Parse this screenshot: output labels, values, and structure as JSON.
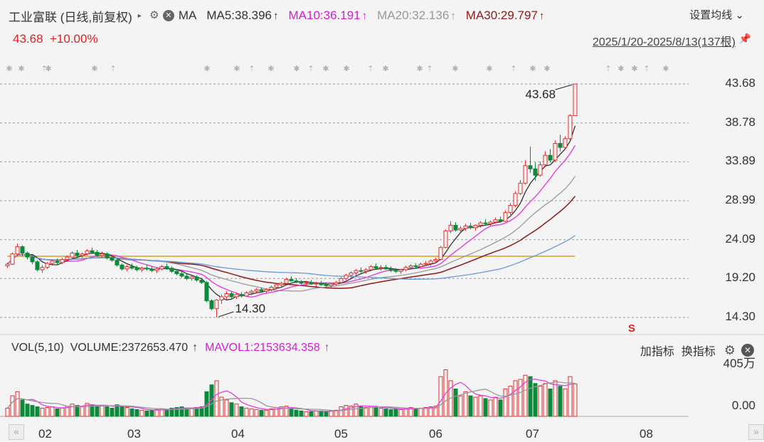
{
  "header": {
    "title": "工业富联 (日线,前复权)",
    "ma_label": "MA",
    "ma5": "MA5:38.396",
    "ma10": "MA10:36.191",
    "ma20": "MA20:32.136",
    "ma30": "MA30:29.797",
    "settings": "设置均线",
    "last_price": "43.68",
    "change_pct": "+10.00%",
    "range": "2025/1/20-2025/8/13(137根)"
  },
  "volume_panel": {
    "label": "VOL(5,10)",
    "volume": "VOLUME:2372653.470",
    "mavol": "MAVOL1:2153634.358",
    "add_indicator": "加指标",
    "switch_indicator": "换指标",
    "yticks": [
      "405万",
      "0.00"
    ]
  },
  "x_axis": {
    "months": [
      "02",
      "03",
      "04",
      "05",
      "06",
      "07",
      "08"
    ]
  },
  "price_axis": {
    "ticks": [
      "43.68",
      "38.78",
      "33.89",
      "28.99",
      "24.09",
      "19.20",
      "14.30"
    ]
  },
  "annotations": {
    "high": "43.68",
    "low": "14.30"
  },
  "colors": {
    "up": "#e03030",
    "down": "#0a8a3a",
    "ma5": "#333333",
    "ma10": "#e040e0",
    "ma20": "#999999",
    "ma30": "#8b1a1a",
    "ma60": "#6a9ad8",
    "ma120": "#d4a020",
    "yellow": "#e8c020",
    "bg": "#f4f4f4"
  },
  "chart_data": {
    "type": "candlestick",
    "ylim": [
      14.3,
      43.68
    ],
    "vol_ylim": [
      0,
      405
    ],
    "ma_current": {
      "MA5": 38.396,
      "MA10": 36.191,
      "MA20": 32.136,
      "MA30": 29.797
    },
    "candles": [
      [
        20.8,
        21.2,
        20.5,
        21.0,
        60
      ],
      [
        21.0,
        22.5,
        20.9,
        22.3,
        150
      ],
      [
        22.3,
        23.6,
        22.0,
        23.2,
        180
      ],
      [
        23.2,
        23.4,
        22.0,
        22.4,
        120
      ],
      [
        22.4,
        22.6,
        21.6,
        21.9,
        90
      ],
      [
        21.9,
        22.2,
        21.0,
        21.3,
        80
      ],
      [
        21.3,
        21.5,
        20.1,
        20.3,
        70
      ],
      [
        20.3,
        20.9,
        19.9,
        20.6,
        60
      ],
      [
        20.6,
        21.3,
        20.4,
        21.1,
        65
      ],
      [
        21.1,
        21.6,
        20.8,
        21.4,
        70
      ],
      [
        21.4,
        21.7,
        21.0,
        21.2,
        55
      ],
      [
        21.2,
        21.8,
        21.0,
        21.6,
        60
      ],
      [
        21.6,
        22.1,
        21.3,
        21.9,
        75
      ],
      [
        21.9,
        22.6,
        21.7,
        22.4,
        90
      ],
      [
        22.4,
        22.8,
        21.9,
        22.1,
        80
      ],
      [
        22.1,
        22.5,
        21.8,
        22.3,
        70
      ],
      [
        22.3,
        22.9,
        22.1,
        22.7,
        95
      ],
      [
        22.7,
        23.1,
        22.3,
        22.5,
        85
      ],
      [
        22.5,
        22.8,
        21.9,
        22.1,
        75
      ],
      [
        22.1,
        22.6,
        21.8,
        22.3,
        80
      ],
      [
        22.3,
        22.5,
        21.6,
        21.8,
        70
      ],
      [
        21.8,
        22.0,
        21.3,
        21.5,
        60
      ],
      [
        21.5,
        21.7,
        20.7,
        20.9,
        85
      ],
      [
        20.9,
        21.1,
        20.2,
        20.4,
        75
      ],
      [
        20.4,
        20.9,
        20.1,
        20.7,
        65
      ],
      [
        20.7,
        21.1,
        20.3,
        20.5,
        55
      ],
      [
        20.5,
        20.8,
        20.1,
        20.3,
        50
      ],
      [
        20.3,
        20.7,
        20.0,
        20.5,
        45
      ],
      [
        20.5,
        20.9,
        20.2,
        20.4,
        40
      ],
      [
        20.4,
        20.7,
        20.0,
        20.2,
        45
      ],
      [
        20.2,
        20.6,
        19.9,
        20.4,
        50
      ],
      [
        20.4,
        20.9,
        20.2,
        20.7,
        55
      ],
      [
        20.7,
        21.1,
        20.3,
        20.5,
        50
      ],
      [
        20.5,
        20.7,
        19.9,
        20.1,
        60
      ],
      [
        20.1,
        20.4,
        19.6,
        19.8,
        65
      ],
      [
        19.8,
        20.1,
        19.3,
        19.5,
        70
      ],
      [
        19.5,
        19.8,
        19.0,
        19.2,
        60
      ],
      [
        19.2,
        19.6,
        18.9,
        19.4,
        55
      ],
      [
        19.4,
        19.6,
        18.8,
        19.0,
        65
      ],
      [
        19.0,
        19.3,
        18.5,
        18.7,
        70
      ],
      [
        18.7,
        18.9,
        16.2,
        16.4,
        180
      ],
      [
        16.4,
        16.6,
        15.2,
        15.4,
        230
      ],
      [
        15.4,
        16.6,
        14.3,
        16.5,
        260
      ],
      [
        16.5,
        17.2,
        16.0,
        16.9,
        140
      ],
      [
        16.9,
        17.6,
        16.6,
        17.3,
        120
      ],
      [
        17.3,
        17.6,
        16.7,
        16.9,
        100
      ],
      [
        16.9,
        17.4,
        16.6,
        17.2,
        90
      ],
      [
        17.2,
        17.5,
        16.8,
        17.0,
        70
      ],
      [
        17.0,
        17.6,
        16.9,
        17.4,
        60
      ],
      [
        17.4,
        17.8,
        17.1,
        17.6,
        55
      ],
      [
        17.6,
        18.0,
        17.3,
        17.8,
        50
      ],
      [
        17.8,
        18.1,
        17.4,
        17.6,
        45
      ],
      [
        17.6,
        18.0,
        17.4,
        17.8,
        45
      ],
      [
        17.8,
        18.3,
        17.6,
        18.1,
        55
      ],
      [
        18.1,
        18.6,
        17.9,
        18.4,
        65
      ],
      [
        18.4,
        18.8,
        18.1,
        18.6,
        70
      ],
      [
        18.6,
        19.3,
        18.4,
        19.1,
        75
      ],
      [
        19.1,
        19.5,
        18.8,
        18.9,
        55
      ],
      [
        18.9,
        19.2,
        18.6,
        18.8,
        45
      ],
      [
        18.8,
        19.0,
        18.4,
        18.6,
        40
      ],
      [
        18.6,
        18.9,
        18.3,
        18.7,
        35
      ],
      [
        18.7,
        19.0,
        18.4,
        18.5,
        35
      ],
      [
        18.5,
        18.8,
        18.2,
        18.6,
        40
      ],
      [
        18.6,
        18.9,
        18.3,
        18.4,
        40
      ],
      [
        18.4,
        18.7,
        18.1,
        18.3,
        35
      ],
      [
        18.3,
        18.6,
        18.0,
        18.5,
        40
      ],
      [
        18.5,
        18.9,
        18.3,
        18.7,
        45
      ],
      [
        18.7,
        19.4,
        18.6,
        19.2,
        70
      ],
      [
        19.2,
        19.8,
        19.0,
        19.6,
        80
      ],
      [
        19.6,
        20.1,
        19.3,
        19.9,
        75
      ],
      [
        19.9,
        20.4,
        19.6,
        20.2,
        90
      ],
      [
        20.2,
        20.6,
        19.9,
        20.1,
        70
      ],
      [
        20.1,
        20.5,
        19.8,
        20.3,
        65
      ],
      [
        20.3,
        20.9,
        20.1,
        20.7,
        75
      ],
      [
        20.7,
        21.1,
        20.4,
        20.5,
        65
      ],
      [
        20.5,
        20.9,
        20.2,
        20.6,
        60
      ],
      [
        20.6,
        20.9,
        20.3,
        20.4,
        55
      ],
      [
        20.4,
        20.7,
        20.0,
        20.2,
        50
      ],
      [
        20.2,
        20.5,
        19.9,
        20.1,
        55
      ],
      [
        20.1,
        20.4,
        19.8,
        20.3,
        50
      ],
      [
        20.3,
        20.8,
        20.1,
        20.6,
        60
      ],
      [
        20.6,
        21.0,
        20.4,
        20.8,
        65
      ],
      [
        20.8,
        21.1,
        20.5,
        20.7,
        55
      ],
      [
        20.7,
        21.2,
        20.6,
        21.0,
        60
      ],
      [
        21.0,
        21.4,
        20.8,
        21.1,
        65
      ],
      [
        21.1,
        21.6,
        20.8,
        21.4,
        70
      ],
      [
        21.4,
        21.8,
        21.1,
        21.6,
        75
      ],
      [
        21.6,
        23.3,
        21.5,
        23.1,
        290
      ],
      [
        23.1,
        25.4,
        23.0,
        25.2,
        340
      ],
      [
        25.2,
        26.4,
        24.9,
        25.9,
        260
      ],
      [
        25.9,
        26.3,
        25.1,
        25.3,
        200
      ],
      [
        25.3,
        25.8,
        24.9,
        25.5,
        150
      ],
      [
        25.5,
        26.1,
        25.2,
        25.8,
        180
      ],
      [
        25.8,
        26.2,
        25.4,
        25.6,
        150
      ],
      [
        25.6,
        26.0,
        25.2,
        25.9,
        140
      ],
      [
        25.9,
        26.4,
        25.6,
        26.2,
        150
      ],
      [
        26.2,
        26.7,
        25.9,
        26.1,
        130
      ],
      [
        26.1,
        26.5,
        25.8,
        26.3,
        120
      ],
      [
        26.3,
        26.9,
        26.1,
        26.6,
        140
      ],
      [
        26.6,
        27.0,
        26.2,
        26.4,
        120
      ],
      [
        26.4,
        27.8,
        26.3,
        27.5,
        200
      ],
      [
        27.5,
        28.7,
        27.2,
        28.4,
        220
      ],
      [
        28.4,
        30.2,
        28.2,
        29.9,
        260
      ],
      [
        29.9,
        31.6,
        29.7,
        31.2,
        270
      ],
      [
        31.2,
        34.1,
        31.0,
        33.4,
        300
      ],
      [
        33.4,
        35.8,
        32.5,
        33.0,
        290
      ],
      [
        33.0,
        33.8,
        31.5,
        32.2,
        240
      ],
      [
        32.2,
        33.9,
        32.0,
        33.5,
        220
      ],
      [
        33.5,
        35.2,
        33.2,
        34.7,
        240
      ],
      [
        34.7,
        35.5,
        33.8,
        34.1,
        200
      ],
      [
        34.1,
        36.6,
        33.9,
        36.2,
        260
      ],
      [
        36.2,
        37.3,
        35.2,
        35.7,
        220
      ],
      [
        35.7,
        37.1,
        35.5,
        36.8,
        200
      ],
      [
        36.8,
        39.9,
        36.6,
        39.7,
        290
      ],
      [
        39.7,
        43.68,
        39.7,
        43.68,
        237
      ]
    ]
  }
}
